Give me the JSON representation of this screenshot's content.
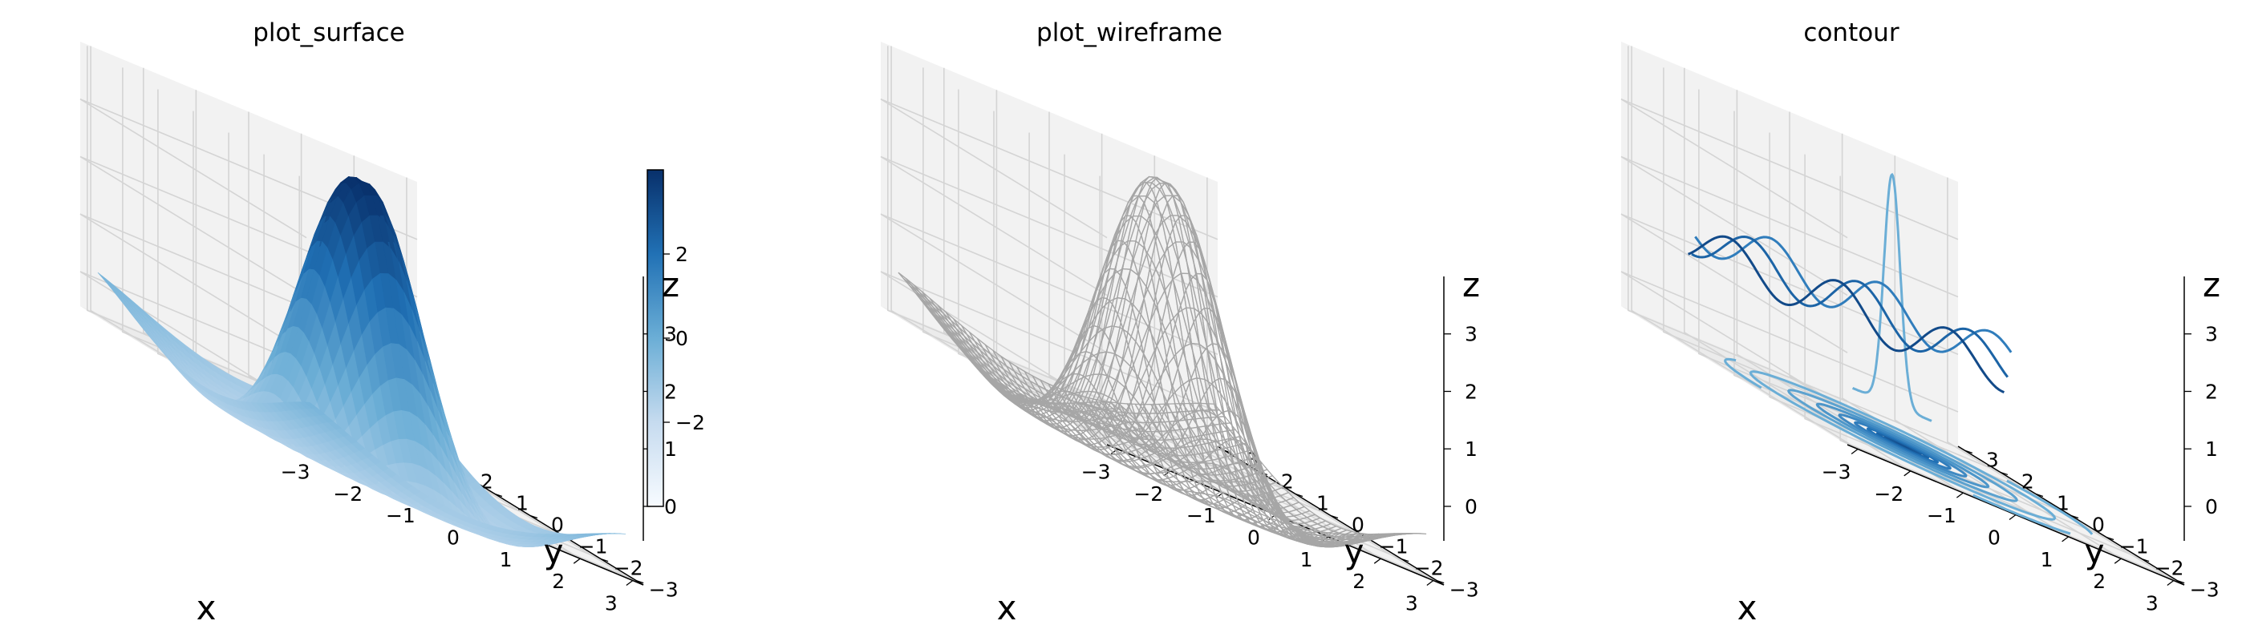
{
  "figure": {
    "panels": [
      {
        "title": "plot_surface",
        "xlabel": "x",
        "ylabel": "y",
        "zlabel": "z"
      },
      {
        "title": "plot_wireframe",
        "xlabel": "x",
        "ylabel": "y",
        "zlabel": "z"
      },
      {
        "title": "contour",
        "xlabel": "x",
        "ylabel": "y",
        "zlabel": "z"
      }
    ]
  },
  "colors": {
    "surface_colormap": "Blues",
    "surface_light": "#c6dbef",
    "surface_mid": "#6baed6",
    "surface_dark": "#08306b",
    "wireframe": "#a6a6a6",
    "pane": "#f2f2f2",
    "pane_side": "#ebebeb",
    "grid": "#d4d4d4"
  },
  "chart_data": [
    {
      "type": "surface",
      "title": "plot_surface",
      "xlabel": "x",
      "ylabel": "y",
      "zlabel": "z",
      "function": "z = 4*sinc-like radial ripple, peak 4 at r=0",
      "x_range": [
        -3.2,
        3.2
      ],
      "y_range": [
        -3.2,
        3.2
      ],
      "z_range": [
        -0.6,
        4.0
      ],
      "x_ticks": [
        "−3",
        "−2",
        "−1",
        "0",
        "1",
        "2",
        "3"
      ],
      "y_ticks": [
        "−3",
        "−2",
        "−1",
        "0",
        "1",
        "2",
        "3"
      ],
      "z_ticks": [
        "0",
        "1",
        "2",
        "3"
      ],
      "colorbar": {
        "range": [
          -4,
          4
        ],
        "ticks": [
          "−2",
          "0",
          "2"
        ],
        "tick_values": [
          -2,
          0,
          2
        ],
        "cmap": "Blues"
      },
      "grid": true
    },
    {
      "type": "wireframe",
      "title": "plot_wireframe",
      "xlabel": "x",
      "ylabel": "y",
      "zlabel": "z",
      "x_range": [
        -3.2,
        3.2
      ],
      "y_range": [
        -3.2,
        3.2
      ],
      "z_range": [
        -0.6,
        4.0
      ],
      "x_ticks": [
        "−3",
        "−2",
        "−1",
        "0",
        "1",
        "2",
        "3"
      ],
      "y_ticks": [
        "−3",
        "−2",
        "−1",
        "0",
        "1",
        "2",
        "3"
      ],
      "z_ticks": [
        "0",
        "1",
        "2",
        "3"
      ],
      "grid": true
    },
    {
      "type": "contour",
      "title": "contour",
      "xlabel": "x",
      "ylabel": "y",
      "zlabel": "z",
      "x_range": [
        -3.2,
        3.2
      ],
      "y_range": [
        -3.2,
        3.2
      ],
      "z_range": [
        -0.6,
        4.0
      ],
      "x_ticks": [
        "−3",
        "−2",
        "−1",
        "0",
        "1",
        "2",
        "3"
      ],
      "y_ticks": [
        "−3",
        "−2",
        "−1",
        "0",
        "1",
        "2",
        "3"
      ],
      "z_ticks": [
        "0",
        "1",
        "2",
        "3"
      ],
      "floor_contour_levels": 9,
      "grid": true
    }
  ]
}
